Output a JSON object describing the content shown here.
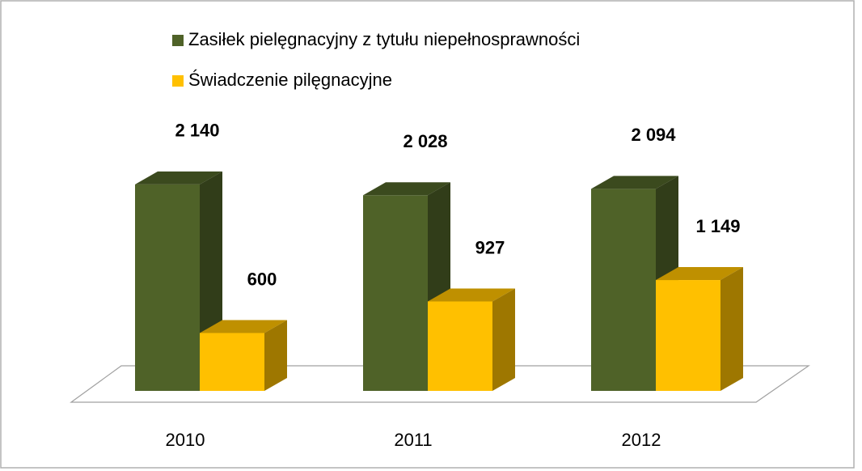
{
  "chart_data": {
    "type": "bar3d",
    "categories": [
      "2010",
      "2011",
      "2012"
    ],
    "series": [
      {
        "name": "Zasiłek pielęgnacyjny z tytułu niepełnosprawności",
        "color": "#4f6228",
        "values": [
          2140,
          2028,
          2094
        ],
        "value_labels": [
          "2 140",
          "2 028",
          "2 094"
        ]
      },
      {
        "name": "Świadczenie pilęgnacyjne",
        "color": "#ffc000",
        "values": [
          600,
          927,
          1149
        ],
        "value_labels": [
          "600",
          "927",
          "1 149"
        ]
      }
    ],
    "legend": "top"
  }
}
